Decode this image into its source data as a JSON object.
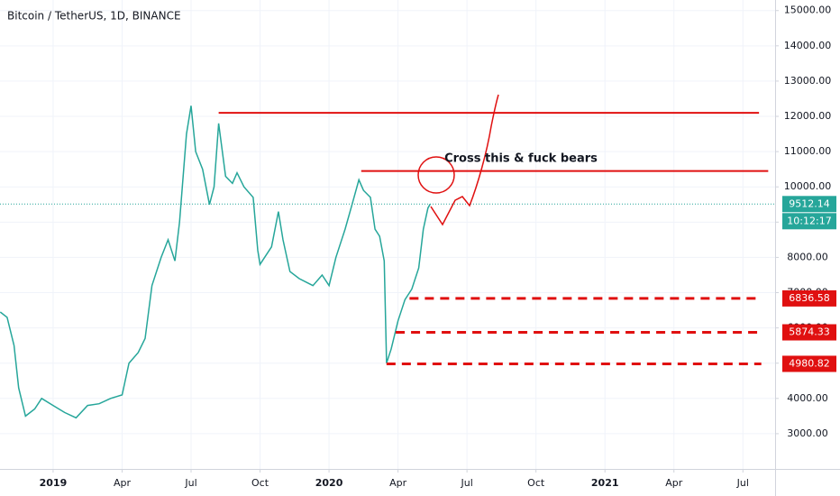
{
  "chart_data": {
    "type": "line",
    "title": "Bitcoin / TetherUS, 1D, BINANCE",
    "annotation": "Cross this & fuck bears",
    "color": "#26a69a",
    "grid": true,
    "xlim": [
      -2.31,
      31.4
    ],
    "ylim": [
      2000,
      15300
    ],
    "xticks": [
      {
        "value": 0,
        "label": "2019"
      },
      {
        "value": 3,
        "label": "Apr"
      },
      {
        "value": 6,
        "label": "Jul"
      },
      {
        "value": 9,
        "label": "Oct"
      },
      {
        "value": 12,
        "label": "2020"
      },
      {
        "value": 15,
        "label": "Apr"
      },
      {
        "value": 18,
        "label": "Jul"
      },
      {
        "value": 21,
        "label": "Oct"
      },
      {
        "value": 24,
        "label": "2021"
      },
      {
        "value": 27,
        "label": "Apr"
      },
      {
        "value": 30,
        "label": "Jul"
      }
    ],
    "yticks": [
      {
        "value": 3000,
        "label": "3000.00"
      },
      {
        "value": 4000,
        "label": "4000.00"
      },
      {
        "value": 5000,
        "label": "5000.00"
      },
      {
        "value": 6000,
        "label": "6000.00"
      },
      {
        "value": 7000,
        "label": "7000.00"
      },
      {
        "value": 8000,
        "label": "8000.00"
      },
      {
        "value": 9000,
        "label": "9000.00"
      },
      {
        "value": 10000,
        "label": "10000.00"
      },
      {
        "value": 11000,
        "label": "11000.00"
      },
      {
        "value": 12000,
        "label": "12000.00"
      },
      {
        "value": 13000,
        "label": "13000.00"
      },
      {
        "value": 14000,
        "label": "14000.00"
      },
      {
        "value": 15000,
        "label": "15000.00"
      }
    ],
    "x": [
      -2.3,
      -2.0,
      -1.7,
      -1.5,
      -1.2,
      -0.8,
      -0.5,
      0,
      0.5,
      1.0,
      1.5,
      2.0,
      2.5,
      3.0,
      3.3,
      3.7,
      4.0,
      4.3,
      4.7,
      5.0,
      5.3,
      5.5,
      5.8,
      6.0,
      6.2,
      6.5,
      6.8,
      7.0,
      7.2,
      7.5,
      7.8,
      8.0,
      8.3,
      8.7,
      8.9,
      9.0,
      9.5,
      9.8,
      10.0,
      10.3,
      10.7,
      11.0,
      11.3,
      11.7,
      12.0,
      12.3,
      12.7,
      13.0,
      13.3,
      13.5,
      13.8,
      14.0,
      14.2,
      14.4,
      14.5,
      14.7,
      15.0,
      15.3,
      15.6,
      15.9,
      16.1,
      16.3,
      16.4
    ],
    "values": [
      6450,
      6300,
      5500,
      4300,
      3500,
      3700,
      4000,
      3800,
      3600,
      3450,
      3800,
      3850,
      4000,
      4100,
      5000,
      5300,
      5700,
      7200,
      8000,
      8500,
      7900,
      9000,
      11500,
      12300,
      11000,
      10500,
      9500,
      10000,
      11800,
      10300,
      10100,
      10400,
      10000,
      9700,
      8200,
      7800,
      8300,
      9300,
      8500,
      7600,
      7400,
      7300,
      7200,
      7500,
      7200,
      8000,
      8800,
      9500,
      10200,
      9900,
      9700,
      8800,
      8600,
      7900,
      5000,
      5400,
      6200,
      6800,
      7100,
      7700,
      8800,
      9400,
      9512.14
    ],
    "levels": [
      {
        "value": 12100,
        "from": 7.2,
        "to": 30.7
      },
      {
        "value": 10450,
        "from": 13.4,
        "to": 31.1
      }
    ],
    "dashed_levels": [
      {
        "value": 6836.58,
        "from": 15.5,
        "to": 30.8
      },
      {
        "value": 5874.33,
        "from": 14.9,
        "to": 30.8
      },
      {
        "value": 4980.82,
        "from": 14.5,
        "to": 30.8
      }
    ],
    "last_price": 9512.14,
    "countdown": "10:12:17"
  }
}
